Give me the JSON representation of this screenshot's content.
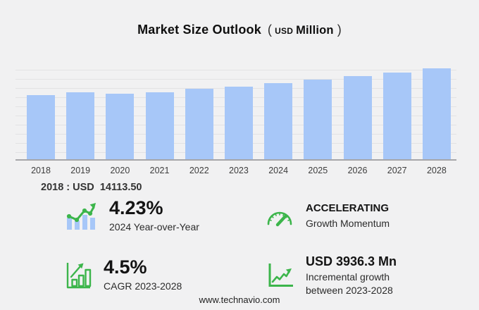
{
  "title": {
    "main": "Market Size Outlook",
    "paren_open": "(",
    "unit_small": "USD",
    "unit": "Million",
    "paren_close": ")"
  },
  "chart_data": {
    "type": "bar",
    "title": "Market Size Outlook (USD Million)",
    "unit": "USD Million",
    "categories": [
      "2018",
      "2019",
      "2020",
      "2021",
      "2022",
      "2023",
      "2024",
      "2025",
      "2026",
      "2027",
      "2028"
    ],
    "values": [
      14113.5,
      14660,
      14300,
      14700,
      15400,
      15958,
      16633,
      17381,
      18163,
      18980,
      19894.3
    ],
    "xlabel": "",
    "ylabel": "",
    "ylim": [
      0,
      19900
    ],
    "grid": true,
    "legend": false,
    "bar_color": "#a7c7f8"
  },
  "annotation": {
    "base_year_value": "2018 : USD  14113.50"
  },
  "stats": [
    {
      "icon": "bar-line-trend-icon",
      "value": "4.23%",
      "label": "2024 Year-over-Year"
    },
    {
      "icon": "speedometer-icon",
      "value": "ACCELERATING",
      "label": "Growth Momentum"
    },
    {
      "icon": "bar-chart-growth-icon",
      "value": "4.5%",
      "label": "CAGR 2023-2028"
    },
    {
      "icon": "line-chart-growth-icon",
      "value": "USD 3936.3 Mn",
      "label": "Incremental growth between 2023-2028"
    }
  ],
  "footer": {
    "url": "www.technavio.com"
  },
  "colors": {
    "background": "#f1f1f2",
    "bar_blue": "#a7c7f8",
    "accent_green": "#3cb54b",
    "grid_line": "#e2e2e4",
    "axis_line": "#a6a6a9",
    "text_dark": "#141414"
  }
}
